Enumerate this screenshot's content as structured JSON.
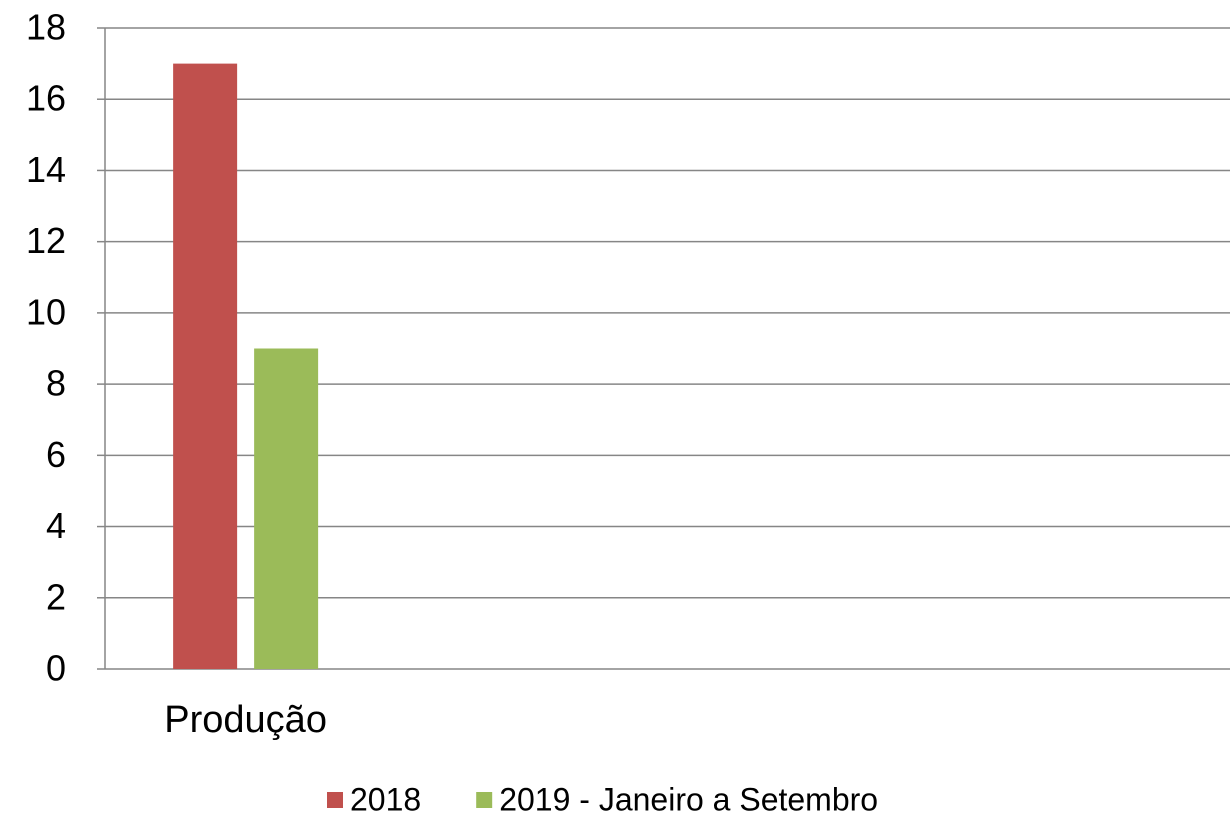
{
  "chart_data": {
    "type": "bar",
    "categories": [
      "Produção",
      null,
      null,
      null
    ],
    "series": [
      {
        "name": "2018",
        "color": "#c0504d",
        "values": [
          17,
          null,
          null,
          null
        ]
      },
      {
        "name": "2019 - Janeiro a Setembro",
        "color": "#9bbb59",
        "values": [
          9,
          null,
          null,
          null
        ]
      }
    ],
    "ylim": [
      0,
      18
    ],
    "yticks": [
      0,
      2,
      4,
      6,
      8,
      10,
      12,
      14,
      16,
      18
    ],
    "grid": true,
    "legend": "bottom"
  }
}
